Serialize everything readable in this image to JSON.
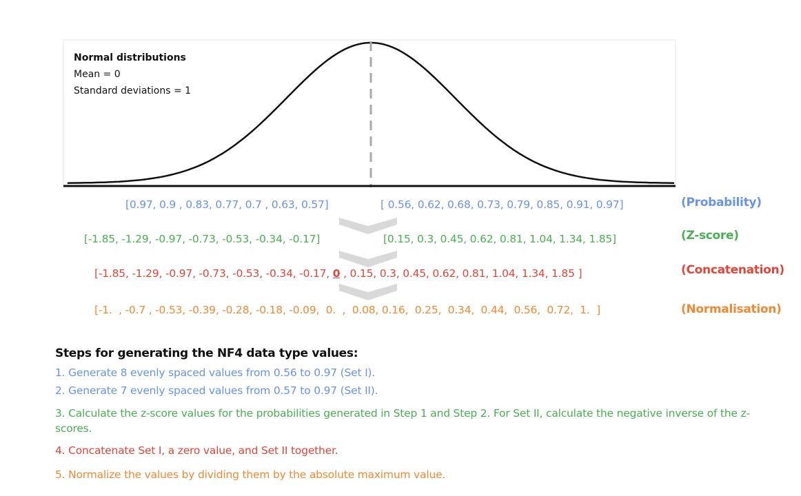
{
  "legend": {
    "title": "Normal distributions",
    "mean": "Mean = 0",
    "std": "Standard deviations = 1"
  },
  "rows": {
    "probability": {
      "left": "[0.97, 0.9 , 0.83, 0.77, 0.7 , 0.63, 0.57]",
      "right": "[ 0.56, 0.62, 0.68, 0.73, 0.79, 0.85, 0.91, 0.97]",
      "label": "(Probability)"
    },
    "zscore": {
      "left": "[-1.85, -1.29, -0.97, -0.73, -0.53, -0.34, -0.17]",
      "right": "[0.15, 0.3, 0.45, 0.62, 0.81, 1.04, 1.34, 1.85]",
      "label": "(Z-score)"
    },
    "concatenation": {
      "before": "[-1.85, -1.29, -0.97, -0.73, -0.53, -0.34, -0.17, ",
      "zero": "0",
      "after": " , 0.15, 0.3, 0.45, 0.62, 0.81, 1.04, 1.34, 1.85 ]",
      "label": "(Concatenation)"
    },
    "normalisation": {
      "values": "[-1.  , -0.7 , -0.53, -0.39, -0.28, -0.18, -0.09,  0.  ,  0.08, 0.16,  0.25,  0.34,  0.44,  0.56,  0.72,  1.  ]",
      "label": "(Normalisation)"
    }
  },
  "steps": {
    "title": "Steps for generating the NF4 data type values:",
    "items": [
      "1. Generate 8 evenly spaced values from 0.56 to 0.97 (Set I).",
      "2. Generate 7 evenly spaced values from 0.57 to 0.97 (Set II).",
      "3. Calculate the z-score values for the probabilities generated in Step 1 and Step 2. For Set II, calculate the negative inverse of the z-scores.",
      "4. Concatenate Set I, a zero value, and Set II together.",
      "5. Normalize the values by dividing them by the absolute maximum value."
    ]
  },
  "colors": {
    "probability": "#6a93e6",
    "zscore": "#4cae54",
    "concatenation": "#e0463c",
    "normalisation": "#ee8a36",
    "curve": "#111111",
    "mean_line": "#a9a9a9"
  },
  "icons": {
    "arrow": "chevron-down-icon"
  }
}
